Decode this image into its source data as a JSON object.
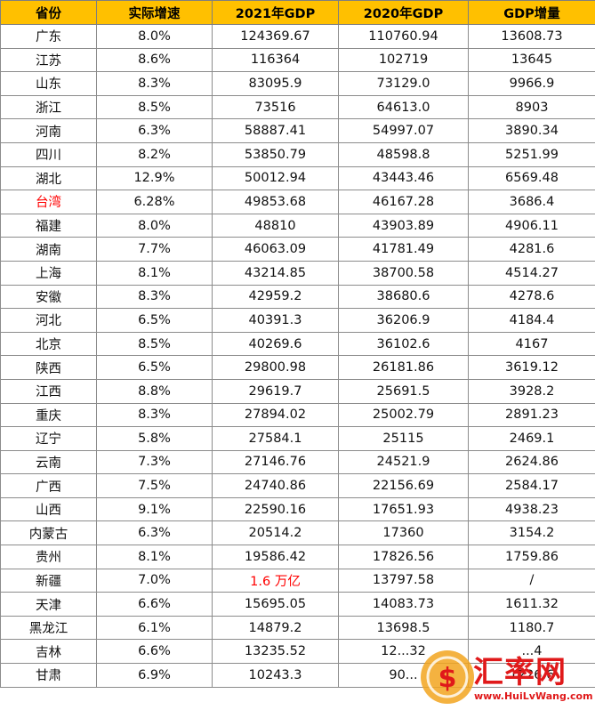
{
  "table": {
    "headers": [
      "省份",
      "实际增速",
      "2021年GDP",
      "2020年GDP",
      "GDP增量"
    ],
    "rows": [
      [
        "广东",
        "8.0%",
        "124369.67",
        "110760.94",
        "13608.73"
      ],
      [
        "江苏",
        "8.6%",
        "116364",
        "102719",
        "13645"
      ],
      [
        "山东",
        "8.3%",
        "83095.9",
        "73129.0",
        "9966.9"
      ],
      [
        "浙江",
        "8.5%",
        "73516",
        "64613.0",
        "8903"
      ],
      [
        "河南",
        "6.3%",
        "58887.41",
        "54997.07",
        "3890.34"
      ],
      [
        "四川",
        "8.2%",
        "53850.79",
        "48598.8",
        "5251.99"
      ],
      [
        "湖北",
        "12.9%",
        "50012.94",
        "43443.46",
        "6569.48"
      ],
      [
        "台湾",
        "6.28%",
        "49853.68",
        "46167.28",
        "3686.4"
      ],
      [
        "福建",
        "8.0%",
        "48810",
        "43903.89",
        "4906.11"
      ],
      [
        "湖南",
        "7.7%",
        "46063.09",
        "41781.49",
        "4281.6"
      ],
      [
        "上海",
        "8.1%",
        "43214.85",
        "38700.58",
        "4514.27"
      ],
      [
        "安徽",
        "8.3%",
        "42959.2",
        "38680.6",
        "4278.6"
      ],
      [
        "河北",
        "6.5%",
        "40391.3",
        "36206.9",
        "4184.4"
      ],
      [
        "北京",
        "8.5%",
        "40269.6",
        "36102.6",
        "4167"
      ],
      [
        "陕西",
        "6.5%",
        "29800.98",
        "26181.86",
        "3619.12"
      ],
      [
        "江西",
        "8.8%",
        "29619.7",
        "25691.5",
        "3928.2"
      ],
      [
        "重庆",
        "8.3%",
        "27894.02",
        "25002.79",
        "2891.23"
      ],
      [
        "辽宁",
        "5.8%",
        "27584.1",
        "25115",
        "2469.1"
      ],
      [
        "云南",
        "7.3%",
        "27146.76",
        "24521.9",
        "2624.86"
      ],
      [
        "广西",
        "7.5%",
        "24740.86",
        "22156.69",
        "2584.17"
      ],
      [
        "山西",
        "9.1%",
        "22590.16",
        "17651.93",
        "4938.23"
      ],
      [
        "内蒙古",
        "6.3%",
        "20514.2",
        "17360",
        "3154.2"
      ],
      [
        "贵州",
        "8.1%",
        "19586.42",
        "17826.56",
        "1759.86"
      ],
      [
        "新疆",
        "7.0%",
        "1.6 万亿",
        "13797.58",
        "/"
      ],
      [
        "天津",
        "6.6%",
        "15695.05",
        "14083.73",
        "1611.32"
      ],
      [
        "黑龙江",
        "6.1%",
        "14879.2",
        "13698.5",
        "1180.7"
      ],
      [
        "吉林",
        "6.6%",
        "13235.52",
        "12...32",
        "...4"
      ],
      [
        "甘肃",
        "6.9%",
        "10243.3",
        "90...",
        "1226.6"
      ]
    ],
    "highlight_colors": {
      "header_bg": "#FFC000",
      "red_text": "#FF0000"
    }
  },
  "watermark": {
    "name": "汇率网",
    "url": "www.HuiLvWang.com",
    "icon": "coin-logo-icon"
  }
}
